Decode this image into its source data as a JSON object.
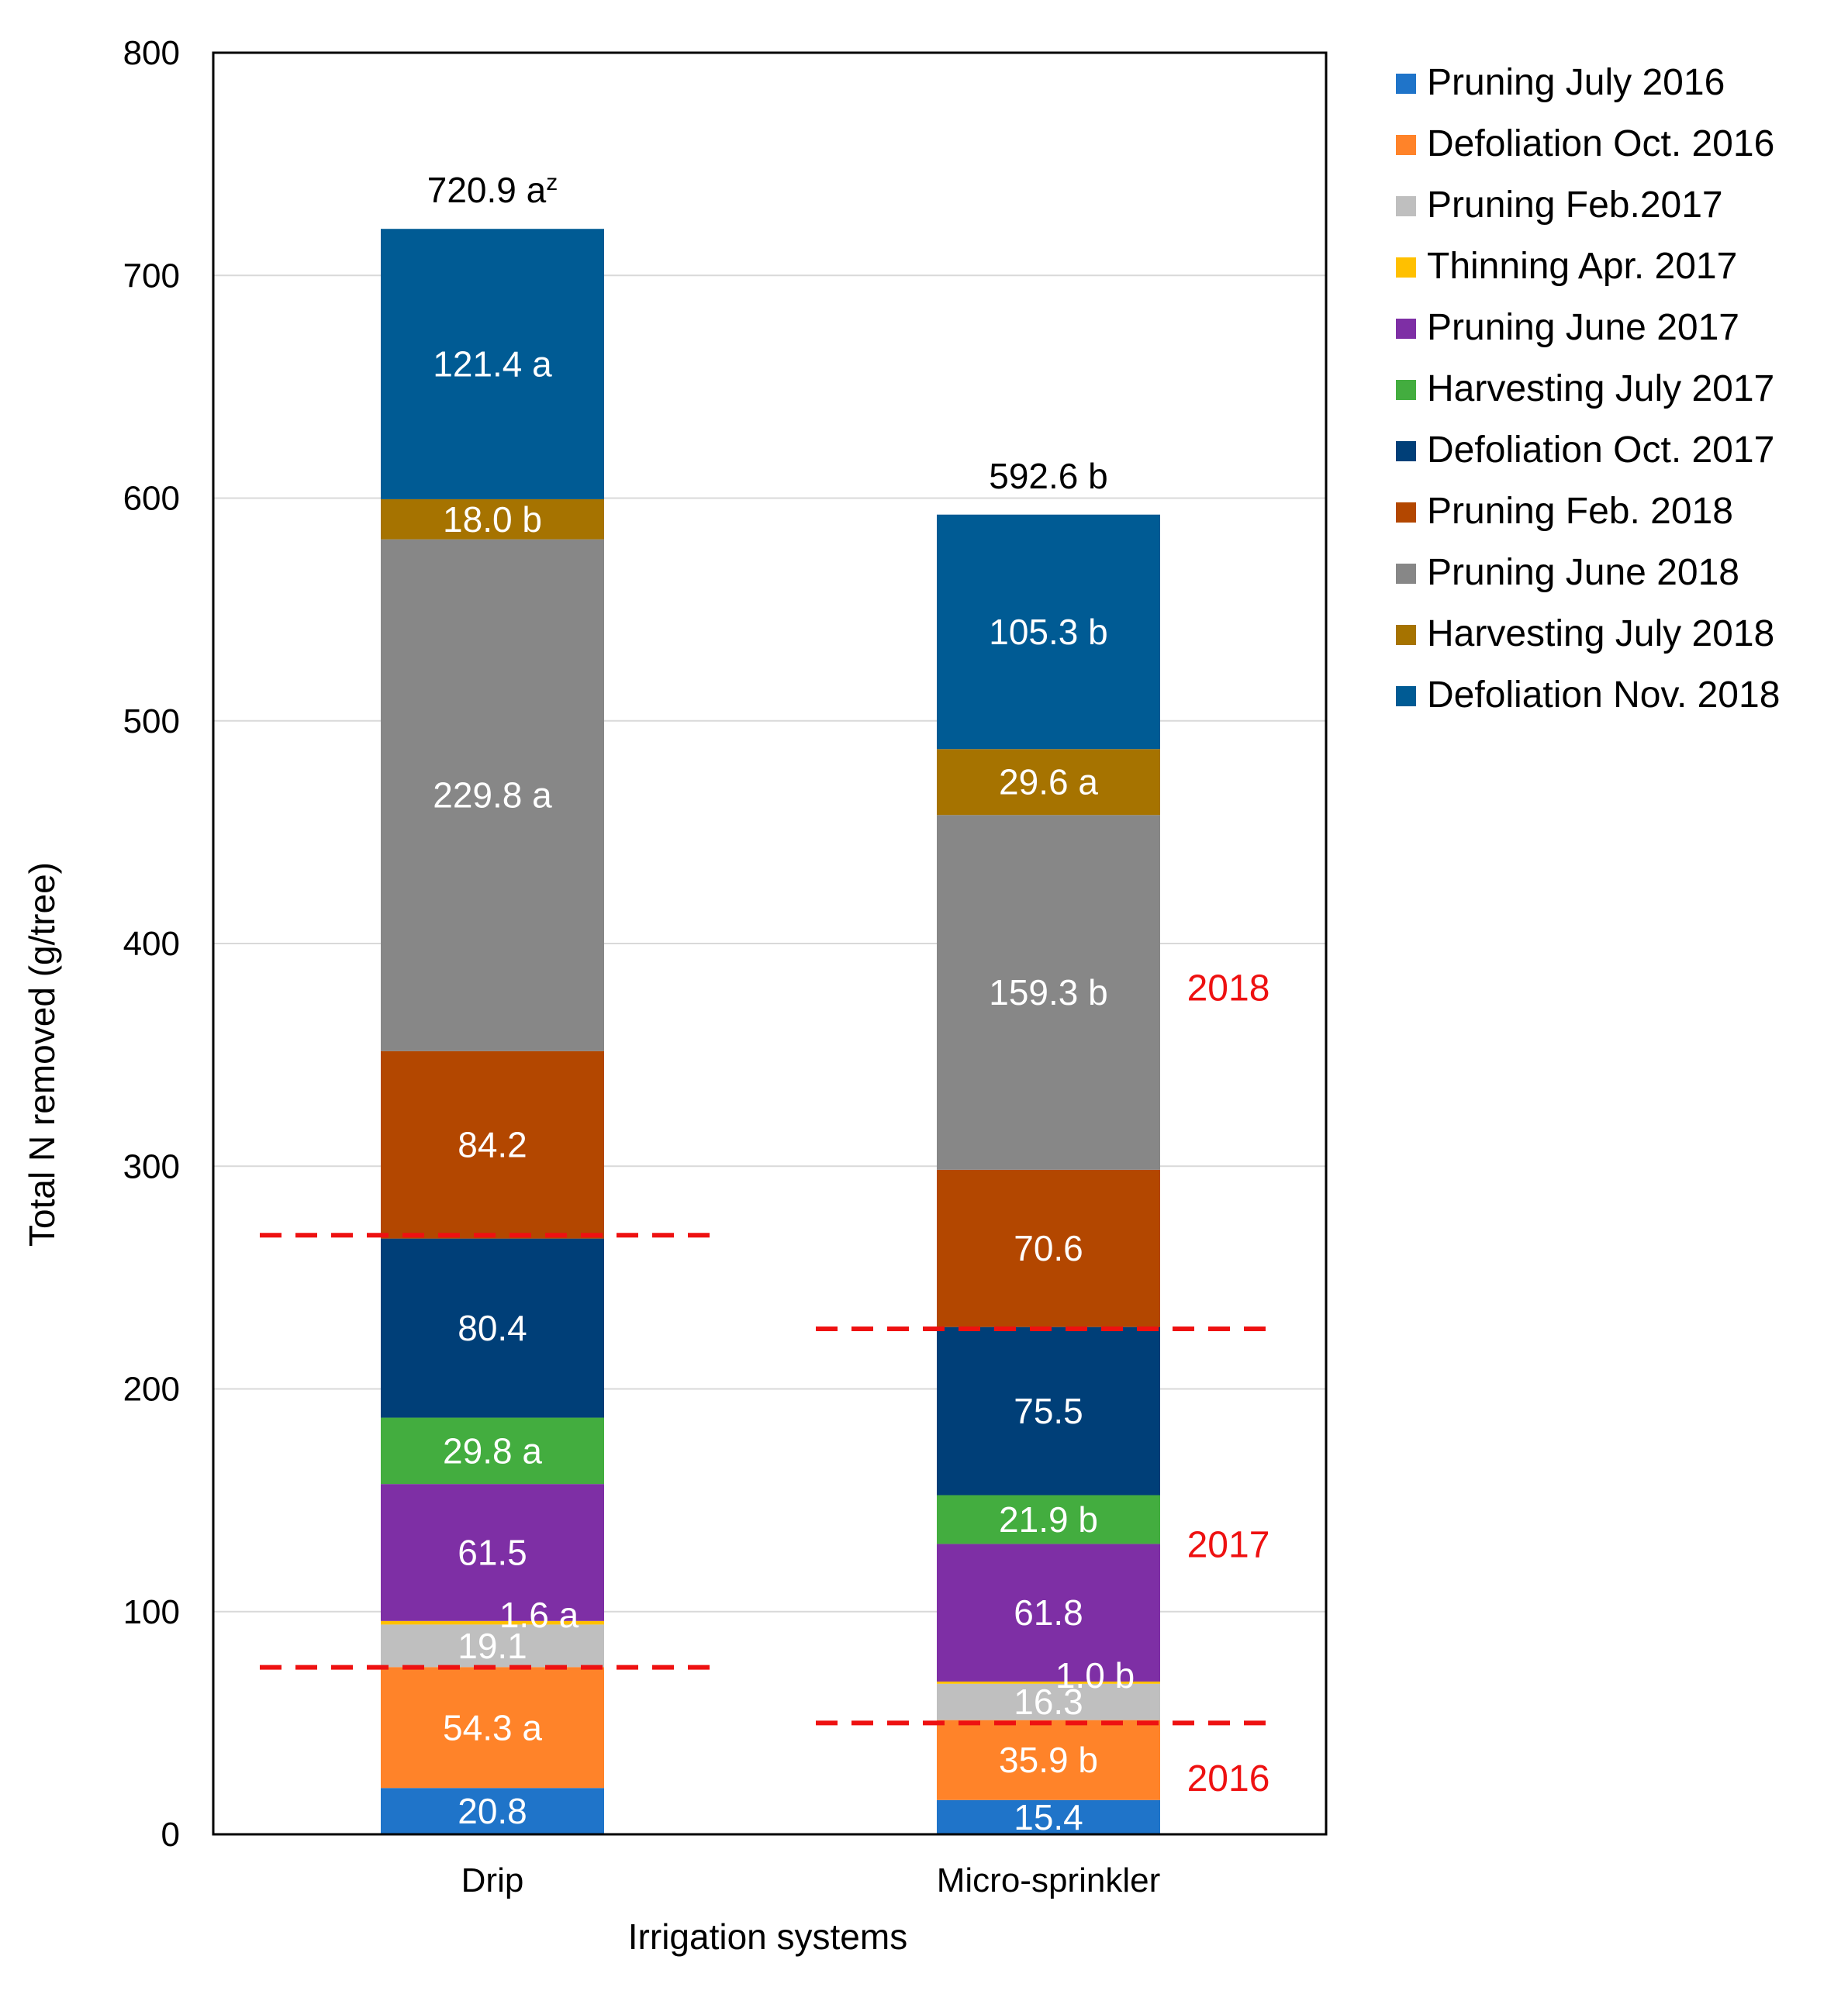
{
  "chart_data": {
    "type": "bar",
    "stacked": true,
    "xlabel": "Irrigation systems",
    "ylabel": "Total N removed (g/tree)",
    "ylim": [
      0,
      800
    ],
    "yticks": [
      0,
      100,
      200,
      300,
      400,
      500,
      600,
      700,
      800
    ],
    "grid": true,
    "legend_position": "right",
    "categories": [
      "Drip",
      "Micro-sprinkler"
    ],
    "series": [
      {
        "name": "Pruning July 2016",
        "color": "#1f74c9",
        "values": [
          20.8,
          15.4
        ],
        "labels": [
          "20.8",
          "15.4"
        ]
      },
      {
        "name": "Defoliation Oct. 2016",
        "color": "#ff8329",
        "values": [
          54.3,
          35.9
        ],
        "labels": [
          "54.3 a",
          "35.9 b"
        ]
      },
      {
        "name": "Pruning Feb.2017",
        "color": "#bfbfbf",
        "values": [
          19.1,
          16.3
        ],
        "labels": [
          "19.1",
          "16.3"
        ]
      },
      {
        "name": "Thinning Apr. 2017",
        "color": "#ffc000",
        "values": [
          1.6,
          1.0
        ],
        "labels": [
          "1.6 a",
          "1.0 b"
        ]
      },
      {
        "name": "Pruning June 2017",
        "color": "#7e2fa5",
        "values": [
          61.5,
          61.8
        ],
        "labels": [
          "61.5",
          "61.8"
        ]
      },
      {
        "name": "Harvesting July 2017",
        "color": "#43ad3f",
        "values": [
          29.8,
          21.9
        ],
        "labels": [
          "29.8 a",
          "21.9 b"
        ]
      },
      {
        "name": "Defoliation Oct. 2017",
        "color": "#003f78",
        "values": [
          80.4,
          75.5
        ],
        "labels": [
          "80.4",
          "75.5"
        ]
      },
      {
        "name": "Pruning Feb. 2018",
        "color": "#b34700",
        "values": [
          84.2,
          70.6
        ],
        "labels": [
          "84.2",
          "70.6"
        ]
      },
      {
        "name": "Pruning June 2018",
        "color": "#878787",
        "values": [
          229.8,
          159.3
        ],
        "labels": [
          "229.8 a",
          "159.3 b"
        ]
      },
      {
        "name": "Harvesting July 2018",
        "color": "#a67300",
        "values": [
          18.0,
          29.6
        ],
        "labels": [
          "18.0 b",
          "29.6 a"
        ]
      },
      {
        "name": "Defoliation Nov. 2018",
        "color": "#005b94",
        "values": [
          121.4,
          105.3
        ],
        "labels": [
          "121.4 a",
          "105.3 b"
        ]
      }
    ],
    "totals": [
      {
        "value": 720.9,
        "text": "720.9 a",
        "superscript": "z"
      },
      {
        "value": 592.6,
        "text": "592.6 b",
        "superscript": ""
      }
    ],
    "year_dividers": [
      {
        "category": "Drip",
        "y": 75
      },
      {
        "category": "Drip",
        "y": 269
      },
      {
        "category": "Micro-sprinkler",
        "y": 50
      },
      {
        "category": "Micro-sprinkler",
        "y": 227
      }
    ],
    "year_annotations": [
      {
        "text": "2016",
        "y": 25
      },
      {
        "text": "2017",
        "y": 130
      },
      {
        "text": "2018",
        "y": 380
      }
    ],
    "annotation_color": "#ee1111"
  }
}
